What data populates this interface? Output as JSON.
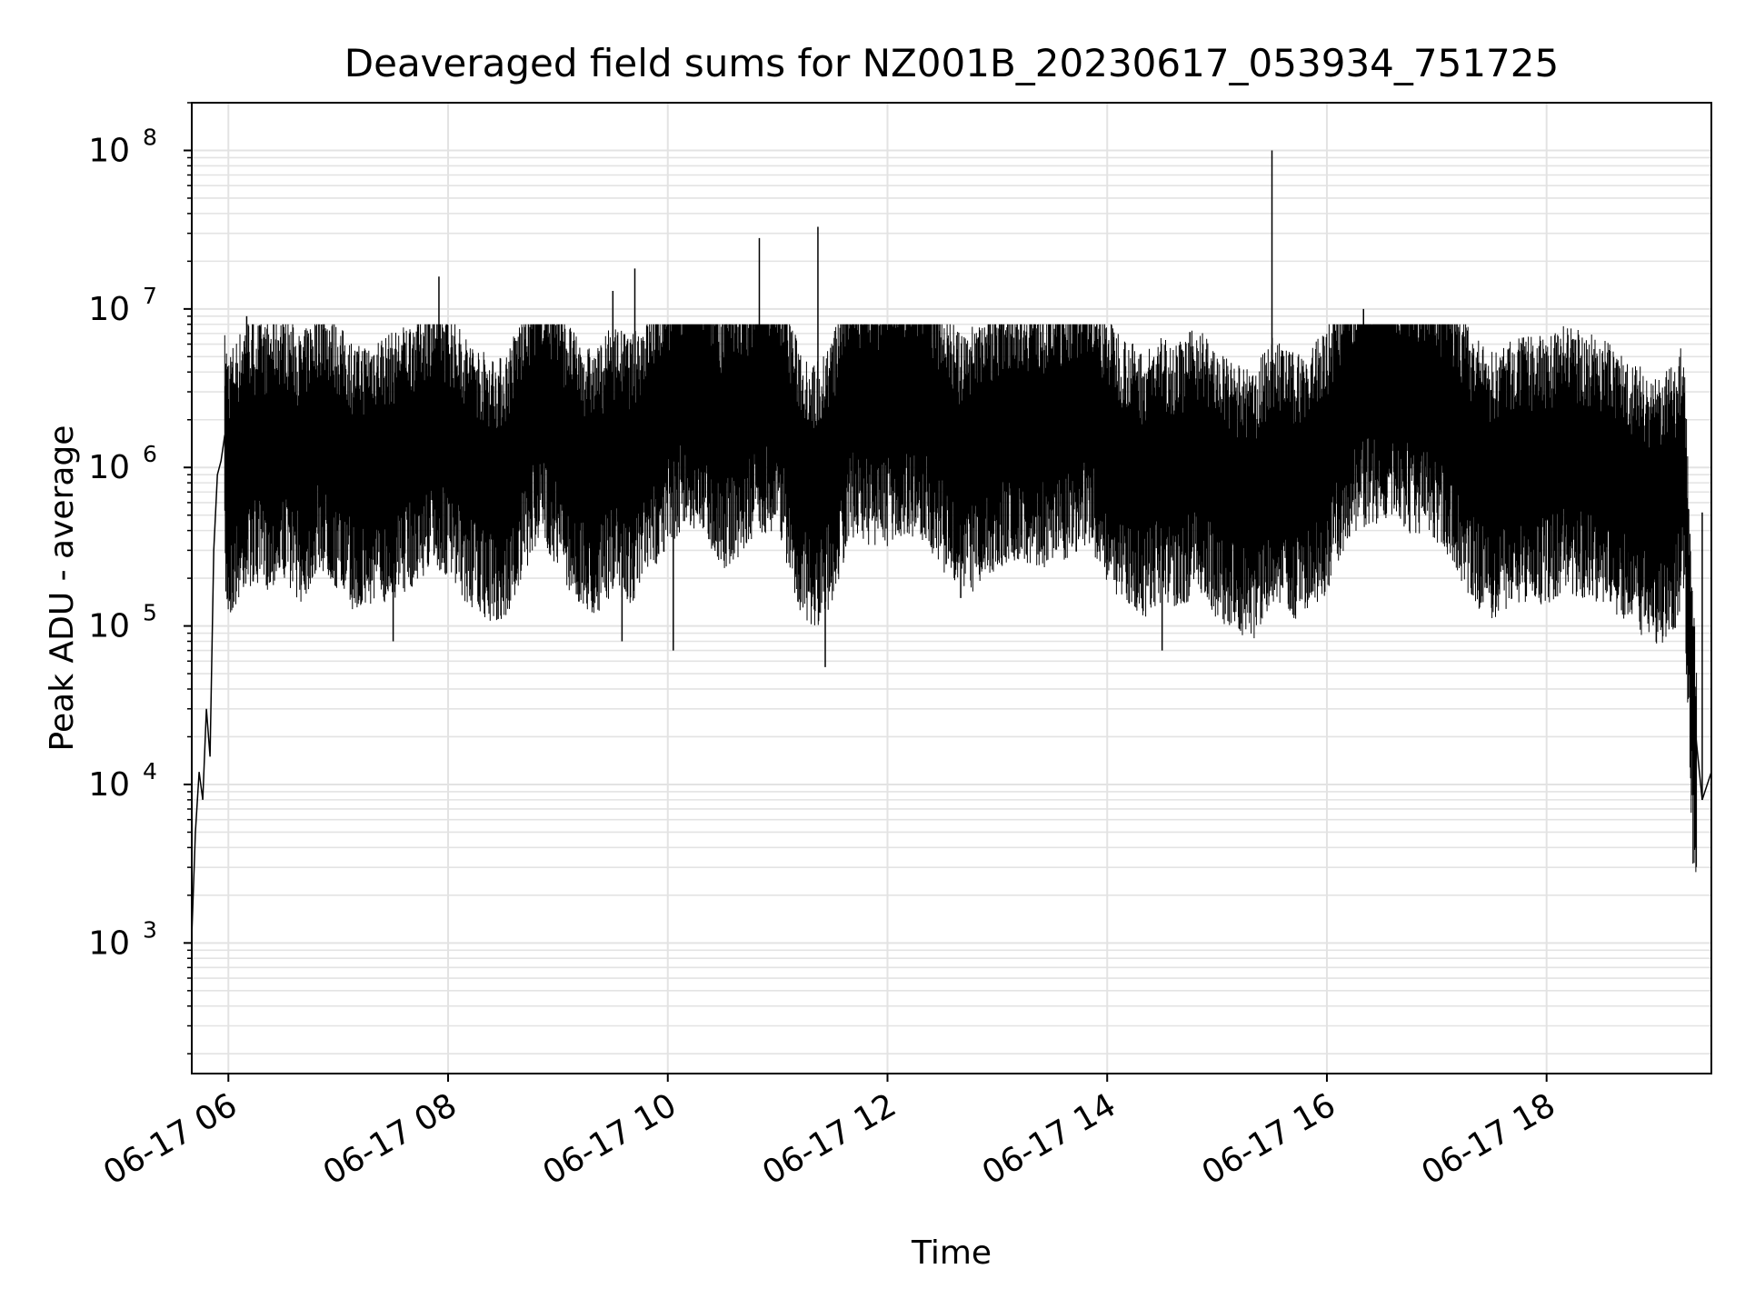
{
  "chart_data": {
    "type": "line",
    "title": "Deaveraged field sums for NZ001B_20230617_053934_751725",
    "xlabel": "Time",
    "ylabel": "Peak ADU - average",
    "yscale": "log",
    "ylim": [
      150,
      200000000
    ],
    "xlim": [
      "06-17 05:40",
      "06-17 19:30"
    ],
    "grid": true,
    "legend": "none",
    "line_color": "#000000",
    "grid_color": "#e3e3e3",
    "x_ticks": [
      {
        "value": "06-17 06:00",
        "label": "06-17 06"
      },
      {
        "value": "06-17 08:00",
        "label": "06-17 08"
      },
      {
        "value": "06-17 10:00",
        "label": "06-17 10"
      },
      {
        "value": "06-17 12:00",
        "label": "06-17 12"
      },
      {
        "value": "06-17 14:00",
        "label": "06-17 14"
      },
      {
        "value": "06-17 16:00",
        "label": "06-17 16"
      },
      {
        "value": "06-17 18:00",
        "label": "06-17 18"
      }
    ],
    "y_ticks": [
      {
        "value": 1000,
        "base": "10",
        "exp": "3"
      },
      {
        "value": 10000,
        "base": "10",
        "exp": "4"
      },
      {
        "value": 100000,
        "base": "10",
        "exp": "5"
      },
      {
        "value": 1000000,
        "base": "10",
        "exp": "6"
      },
      {
        "value": 10000000,
        "base": "10",
        "exp": "7"
      },
      {
        "value": 100000000,
        "base": "10",
        "exp": "8"
      }
    ],
    "series": [
      {
        "x": [
          "06-17 05:40",
          "06-17 05:42",
          "06-17 05:44",
          "06-17 05:46",
          "06-17 05:48",
          "06-17 05:50",
          "06-17 05:52",
          "06-17 05:54",
          "06-17 05:56",
          "06-17 05:58",
          "06-17 06:00",
          "06-17 06:05",
          "06-17 06:10",
          "06-17 06:20",
          "06-17 06:30",
          "06-17 06:40",
          "06-17 06:50",
          "06-17 07:00",
          "06-17 07:10",
          "06-17 07:20",
          "06-17 07:30",
          "06-17 07:40",
          "06-17 07:50",
          "06-17 08:00",
          "06-17 08:10",
          "06-17 08:20",
          "06-17 08:30",
          "06-17 08:40",
          "06-17 08:50",
          "06-17 09:00",
          "06-17 09:10",
          "06-17 09:20",
          "06-17 09:30",
          "06-17 09:40",
          "06-17 09:50",
          "06-17 10:00",
          "06-17 10:10",
          "06-17 10:20",
          "06-17 10:30",
          "06-17 10:40",
          "06-17 10:50",
          "06-17 11:00",
          "06-17 11:10",
          "06-17 11:20",
          "06-17 11:30",
          "06-17 11:40",
          "06-17 11:50",
          "06-17 12:00",
          "06-17 12:10",
          "06-17 12:20",
          "06-17 12:30",
          "06-17 12:40",
          "06-17 12:50",
          "06-17 13:00",
          "06-17 13:10",
          "06-17 13:20",
          "06-17 13:30",
          "06-17 13:40",
          "06-17 13:50",
          "06-17 14:00",
          "06-17 14:10",
          "06-17 14:20",
          "06-17 14:30",
          "06-17 14:40",
          "06-17 14:50",
          "06-17 15:00",
          "06-17 15:10",
          "06-17 15:20",
          "06-17 15:30",
          "06-17 15:40",
          "06-17 15:50",
          "06-17 16:00",
          "06-17 16:10",
          "06-17 16:20",
          "06-17 16:30",
          "06-17 16:40",
          "06-17 16:50",
          "06-17 17:00",
          "06-17 17:10",
          "06-17 17:20",
          "06-17 17:30",
          "06-17 17:40",
          "06-17 17:50",
          "06-17 18:00",
          "06-17 18:10",
          "06-17 18:20",
          "06-17 18:30",
          "06-17 18:40",
          "06-17 18:50",
          "06-17 19:00",
          "06-17 19:10",
          "06-17 19:15",
          "06-17 19:20",
          "06-17 19:25",
          "06-17 19:30"
        ],
        "values": [
          1100,
          5000,
          12000,
          8000,
          30000,
          15000,
          300000,
          900000,
          1100000,
          1600000,
          1200000,
          1500000,
          2000000,
          1800000,
          2200000,
          1500000,
          2500000,
          1800000,
          1300000,
          1500000,
          1600000,
          1900000,
          2500000,
          2200000,
          1500000,
          1200000,
          1100000,
          2000000,
          4000000,
          2500000,
          1500000,
          1200000,
          1800000,
          1500000,
          2200000,
          3500000,
          4500000,
          4000000,
          2500000,
          3000000,
          4000000,
          4500000,
          1500000,
          1000000,
          1500000,
          4000000,
          3500000,
          3500000,
          4000000,
          3800000,
          2500000,
          1500000,
          2000000,
          2500000,
          2800000,
          2600000,
          2500000,
          3000000,
          3500000,
          2000000,
          1500000,
          1200000,
          1500000,
          1400000,
          1800000,
          1200000,
          1000000,
          900000,
          1500000,
          1200000,
          1200000,
          1800000,
          3500000,
          4500000,
          5000000,
          4500000,
          4000000,
          3500000,
          2500000,
          1500000,
          1200000,
          1400000,
          1500000,
          1500000,
          1800000,
          1600000,
          1500000,
          1200000,
          1000000,
          800000,
          1000000,
          1500000,
          30000,
          8000,
          12000
        ]
      }
    ],
    "spikes": [
      {
        "x": "06-17 06:10",
        "y": 9000000
      },
      {
        "x": "06-17 07:55",
        "y": 16000000
      },
      {
        "x": "06-17 07:30",
        "y": 80000
      },
      {
        "x": "06-17 09:30",
        "y": 13000000
      },
      {
        "x": "06-17 09:35",
        "y": 80000
      },
      {
        "x": "06-17 09:42",
        "y": 18000000
      },
      {
        "x": "06-17 10:03",
        "y": 70000
      },
      {
        "x": "06-17 10:50",
        "y": 28000000
      },
      {
        "x": "06-17 11:22",
        "y": 33000000
      },
      {
        "x": "06-17 11:26",
        "y": 55000
      },
      {
        "x": "06-17 12:40",
        "y": 150000
      },
      {
        "x": "06-17 14:30",
        "y": 70000
      },
      {
        "x": "06-17 15:30",
        "y": 100000000
      },
      {
        "x": "06-17 16:20",
        "y": 10000000
      },
      {
        "x": "06-17 17:30",
        "y": 130000
      },
      {
        "x": "06-17 18:45",
        "y": 140000
      },
      {
        "x": "06-17 19:25",
        "y": 520000
      }
    ]
  }
}
